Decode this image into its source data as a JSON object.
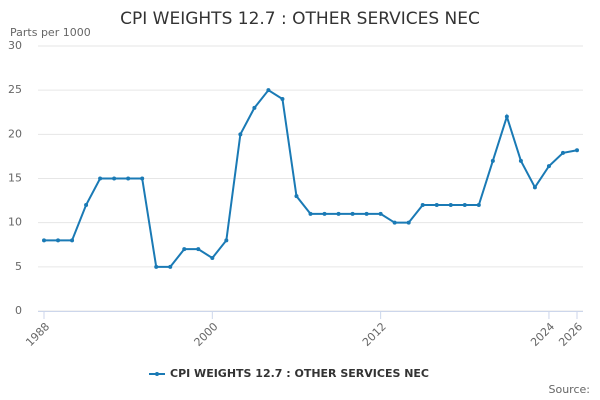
{
  "chart_data": {
    "type": "line",
    "title": "CPI WEIGHTS 12.7 : OTHER SERVICES NEC",
    "y_label": "Parts per 1000",
    "source": "Source:",
    "x": [
      1988,
      1989,
      1990,
      1991,
      1992,
      1993,
      1994,
      1995,
      1996,
      1997,
      1998,
      1999,
      2000,
      2001,
      2002,
      2003,
      2004,
      2005,
      2006,
      2007,
      2008,
      2009,
      2010,
      2011,
      2012,
      2013,
      2014,
      2015,
      2016,
      2017,
      2018,
      2019,
      2020,
      2021,
      2022,
      2023,
      2024,
      2025,
      2026
    ],
    "series": [
      {
        "name": "CPI WEIGHTS 12.7 : OTHER SERVICES NEC",
        "color": "#1a7ab5",
        "values": [
          8,
          8,
          8,
          12,
          15,
          15,
          15,
          15,
          5,
          5,
          7,
          7,
          6,
          8,
          20,
          23,
          25,
          24,
          13,
          11,
          11,
          11,
          11,
          11,
          11,
          10,
          10,
          12,
          12,
          12,
          12,
          12,
          17,
          22,
          17,
          14,
          16.4,
          17.9,
          18.2
        ]
      }
    ],
    "xlim": [
      1988,
      2026
    ],
    "xticks": [
      1988,
      2000,
      2012,
      2024,
      2026
    ],
    "ylim": [
      0,
      30
    ],
    "yticks": [
      0,
      5,
      10,
      15,
      20,
      25,
      30
    ],
    "grid": true
  }
}
